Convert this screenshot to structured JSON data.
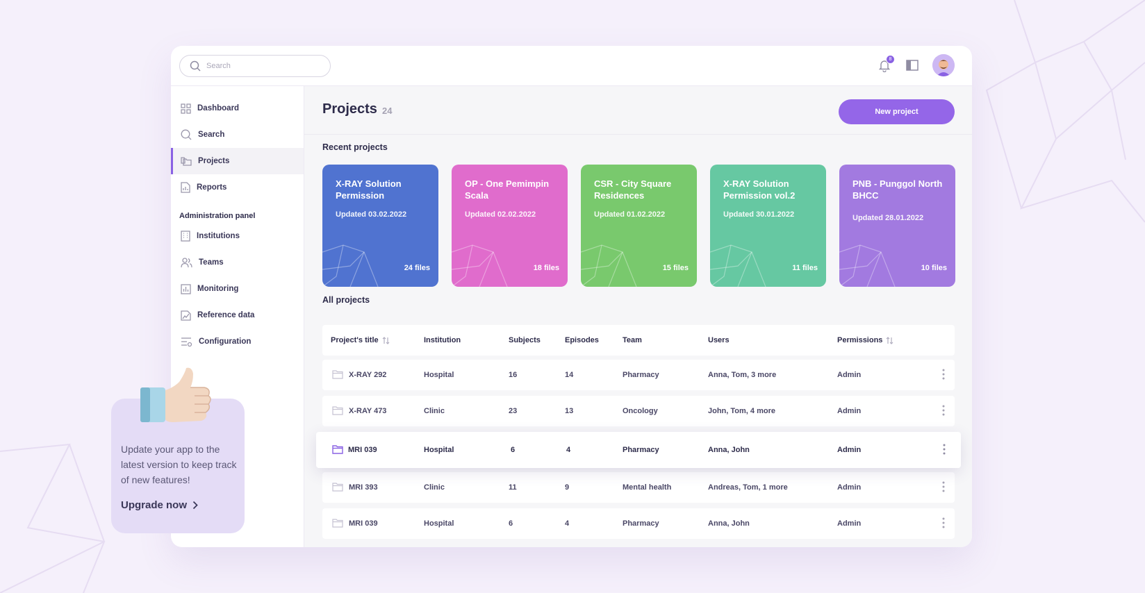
{
  "search": {
    "placeholder": "Search"
  },
  "notifications": {
    "count": "8"
  },
  "sidebar": {
    "items": [
      {
        "label": "Dashboard",
        "icon": "grid-icon"
      },
      {
        "label": "Search",
        "icon": "search-icon"
      },
      {
        "label": "Projects",
        "icon": "folders-icon",
        "active": true
      },
      {
        "label": "Reports",
        "icon": "report-icon"
      }
    ],
    "admin_title": "Administration panel",
    "admin_items": [
      {
        "label": "Institutions",
        "icon": "building-icon"
      },
      {
        "label": "Teams",
        "icon": "users-icon"
      },
      {
        "label": "Monitoring",
        "icon": "bar-chart-icon"
      },
      {
        "label": "Reference data",
        "icon": "image-chart-icon"
      },
      {
        "label": "Configuration",
        "icon": "settings-sliders-icon"
      }
    ]
  },
  "header": {
    "title": "Projects",
    "count": "24",
    "new_button": "New project"
  },
  "recent": {
    "label": "Recent projects",
    "cards": [
      {
        "title": "X-RAY Solution Permission",
        "updated": "Updated 03.02.2022",
        "files": "24 files",
        "color": "#5073d0"
      },
      {
        "title": "OP - One Pemimpin Scala",
        "updated": "Updated 02.02.2022",
        "files": "18 files",
        "color": "#e06ccc"
      },
      {
        "title": "CSR - City Square Residences",
        "updated": "Updated 01.02.2022",
        "files": "15 files",
        "color": "#79c96d"
      },
      {
        "title": "X-RAY Solution Permission vol.2",
        "updated": "Updated 30.01.2022",
        "files": "11 files",
        "color": "#66c8a2"
      },
      {
        "title": "PNB - Punggol North BHCC",
        "updated": "Updated 28.01.2022",
        "files": "10 files",
        "color": "#a27ae0"
      }
    ]
  },
  "all": {
    "label": "All projects",
    "columns": [
      "Project's title",
      "Institution",
      "Subjects",
      "Episodes",
      "Team",
      "Users",
      "Permissions"
    ],
    "rows": [
      {
        "title": "X-RAY 292",
        "institution": "Hospital",
        "subjects": "16",
        "episodes": "14",
        "team": "Pharmacy",
        "users": "Anna, Tom, 3 more",
        "permissions": "Admin"
      },
      {
        "title": "X-RAY 473",
        "institution": "Clinic",
        "subjects": "23",
        "episodes": "13",
        "team": "Oncology",
        "users": "John, Tom, 4 more",
        "permissions": "Admin"
      },
      {
        "title": "MRI 039",
        "institution": "Hospital",
        "subjects": "6",
        "episodes": "4",
        "team": "Pharmacy",
        "users": "Anna, John",
        "permissions": "Admin",
        "highlighted": true
      },
      {
        "title": "MRI 393",
        "institution": "Clinic",
        "subjects": "11",
        "episodes": "9",
        "team": "Mental health",
        "users": "Andreas, Tom, 1 more",
        "permissions": "Admin"
      },
      {
        "title": "MRI 039",
        "institution": "Hospital",
        "subjects": "6",
        "episodes": "4",
        "team": "Pharmacy",
        "users": "Anna, John",
        "permissions": "Admin"
      }
    ]
  },
  "promo": {
    "text": "Update your app to the latest version to keep track of new features!",
    "link": "Upgrade now"
  },
  "colors": {
    "accent": "#9466e8",
    "background": "#f5f0fb"
  }
}
